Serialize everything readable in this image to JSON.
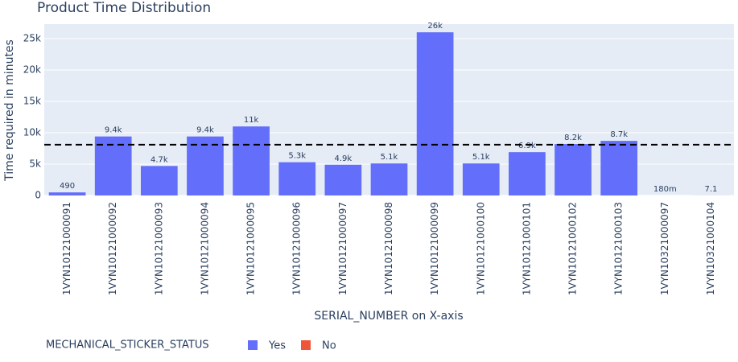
{
  "chart_data": {
    "type": "bar",
    "title": "Product Time Distribution",
    "x_label": "SERIAL_NUMBER on X-axis",
    "y_label": "Time required in minutes",
    "categories": [
      "1VYN10121000091",
      "1VYN10121000092",
      "1VYN10121000093",
      "1VYN10121000094",
      "1VYN10121000095",
      "1VYN10121000096",
      "1VYN10121000097",
      "1VYN10121000098",
      "1VYN10121000099",
      "1VYN10121000100",
      "1VYN10121000101",
      "1VYN10121000102",
      "1VYN10121000103",
      "1VYN10321000097",
      "1VYN10321000104"
    ],
    "legend_title": "MECHANICAL_STICKER_STATUS",
    "legend_position": "bottom-left",
    "series": [
      {
        "name": "Yes",
        "color": "#636efa",
        "values": [
          490,
          9400,
          4700,
          9400,
          11000,
          5300,
          4900,
          5100,
          26000,
          5100,
          6900,
          8200,
          8700,
          0.18,
          7.1
        ],
        "value_labels": [
          "490",
          "9.4k",
          "4.7k",
          "9.4k",
          "11k",
          "5.3k",
          "4.9k",
          "5.1k",
          "26k",
          "5.1k",
          "6.9k",
          "8.2k",
          "8.7k",
          "180m",
          "7.1"
        ]
      },
      {
        "name": "No",
        "color": "#ef553b",
        "values": [
          null,
          null,
          null,
          null,
          null,
          null,
          null,
          null,
          null,
          null,
          null,
          null,
          null,
          null,
          null
        ]
      }
    ],
    "reference_line": 8091,
    "ylim": [
      0,
      27300
    ],
    "yticks": [
      0,
      {
        "value": 5000,
        "label": "5k"
      },
      {
        "value": 10000,
        "label": "10k"
      },
      {
        "value": 15000,
        "label": "15k"
      },
      {
        "value": 20000,
        "label": "20k"
      },
      {
        "value": 25000,
        "label": "25k"
      }
    ],
    "grid": true
  }
}
